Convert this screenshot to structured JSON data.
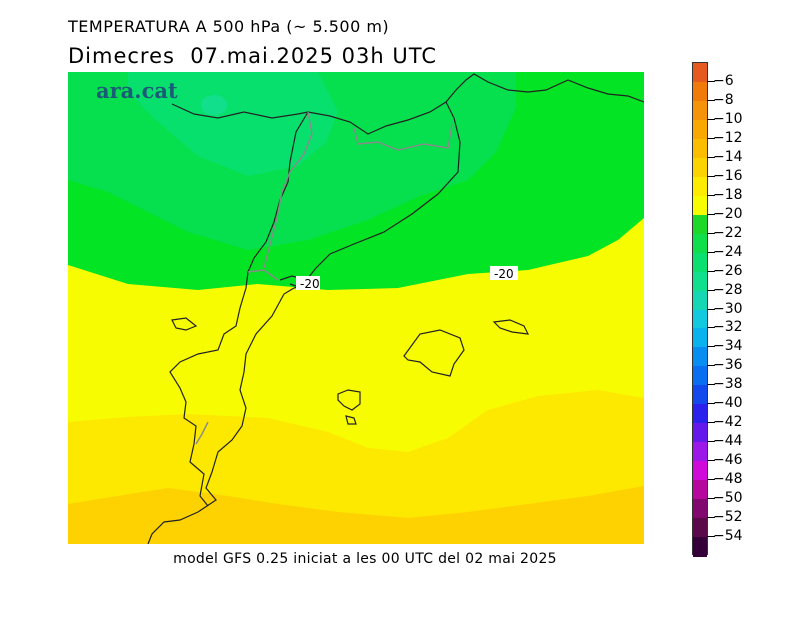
{
  "header": {
    "title": "TEMPERATURA A 500 hPa (~ 5.500 m)",
    "subtitle": "Dimecres  07.mai.2025 03h UTC"
  },
  "brand": "ara.cat",
  "footer": "model GFS 0.25 iniciat a les 00 UTC del 02 mai 2025",
  "contour_labels": [
    "-20",
    "-20"
  ],
  "colorbar": {
    "labels": [
      "−6",
      "−8",
      "−10",
      "−12",
      "−14",
      "−16",
      "−18",
      "−20",
      "−22",
      "−24",
      "−26",
      "−28",
      "−30",
      "−32",
      "−34",
      "−36",
      "−38",
      "−40",
      "−42",
      "−44",
      "−46",
      "−48",
      "−50",
      "−52",
      "−54"
    ],
    "colors": [
      "#e55a1e",
      "#f07a0a",
      "#f5940a",
      "#f8a800",
      "#fbbd00",
      "#fbd400",
      "#fdec00",
      "#f8fc00",
      "#1ed829",
      "#10df4c",
      "#09e070",
      "#10e08e",
      "#16d7b4",
      "#12c9e0",
      "#0ab2ee",
      "#078ef0",
      "#0a6ef0",
      "#1248ec",
      "#2a22ec",
      "#6418ea",
      "#9c18e8",
      "#d00ad8",
      "#b6089c",
      "#80086e",
      "#5a0a4a",
      "#35003a"
    ]
  }
}
